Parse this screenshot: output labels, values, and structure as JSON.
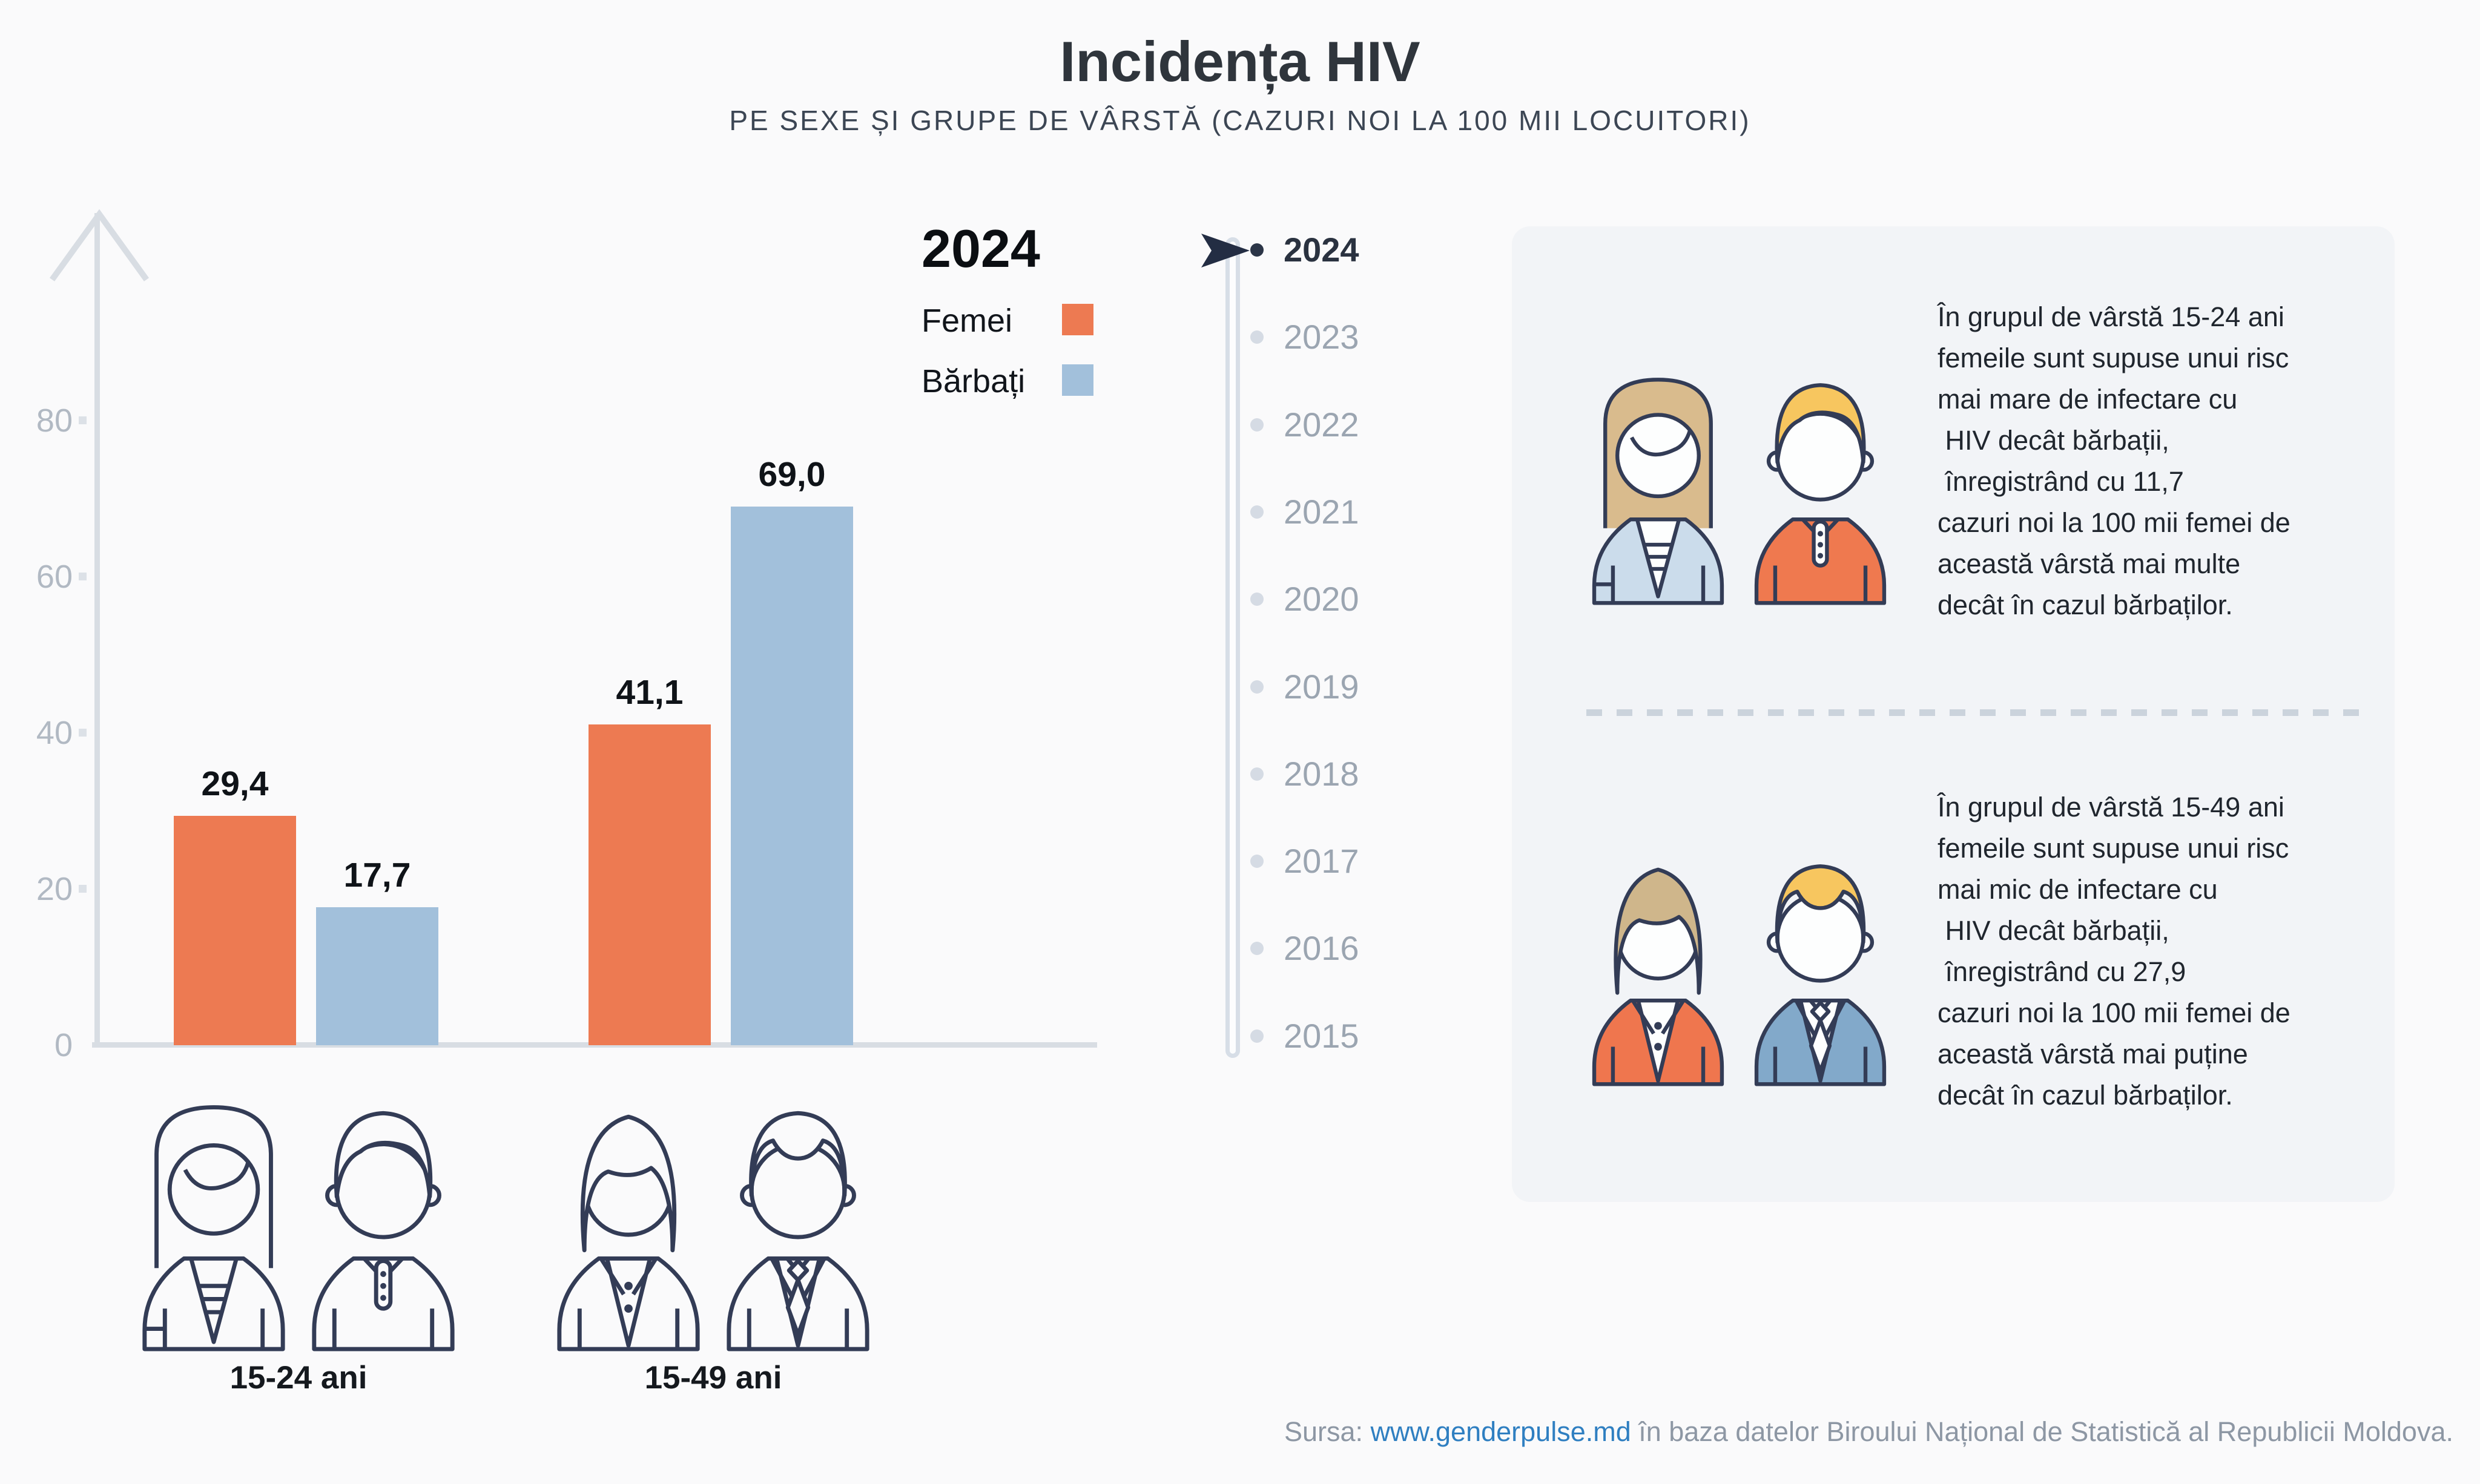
{
  "header": {
    "title": "Incidența HIV",
    "subtitle": "PE SEXE ȘI GRUPE DE VÂRSTĂ (CAZURI NOI LA 100 MII LOCUITORI)"
  },
  "legend": {
    "year": "2024",
    "entries": [
      {
        "label": "Femei",
        "color": "#ED7A52"
      },
      {
        "label": "Bărbați",
        "color": "#A2C0DB"
      }
    ]
  },
  "chart_data": {
    "type": "bar",
    "title": "Incidența HIV",
    "subtitle": "Pe sexe și grupe de vârstă (cazuri noi la 100 mii locuitori)",
    "year": "2024",
    "categories": [
      "15-24 ani",
      "15-49 ani"
    ],
    "series": [
      {
        "name": "Femei",
        "color": "#ED7A52",
        "values": [
          29.4,
          41.1
        ],
        "labels": [
          "29,4",
          "41,1"
        ]
      },
      {
        "name": "Bărbați",
        "color": "#A2C0DB",
        "values": [
          17.7,
          69.0
        ],
        "labels": [
          "17,7",
          "69,0"
        ]
      }
    ],
    "yticks": [
      0,
      20,
      40,
      60,
      80
    ],
    "ylim": [
      0,
      80
    ],
    "grid": false,
    "legend_position": "top-right",
    "icons": [
      "young-woman-icon",
      "young-man-icon",
      "woman-icon",
      "man-icon"
    ]
  },
  "timeline": {
    "active": "2024",
    "years": [
      "2024",
      "2023",
      "2022",
      "2021",
      "2020",
      "2019",
      "2018",
      "2017",
      "2016",
      "2015"
    ]
  },
  "panel": {
    "blocks": [
      {
        "icons": [
          "woman-icon",
          "man-icon"
        ],
        "lines": [
          "În grupul de vârstă 15-24 ani",
          "femeile sunt supuse unui risc",
          "mai mare de infectare cu",
          " HIV decât bărbații,",
          " înregistrând cu 11,7",
          "cazuri noi la 100 mii femei de",
          "această vârstă mai multe",
          "decât în cazul bărbaților."
        ]
      },
      {
        "icons": [
          "woman-icon",
          "man-icon"
        ],
        "lines": [
          "În grupul de vârstă 15-49 ani",
          "femeile sunt supuse unui risc",
          "mai mic de infectare cu",
          " HIV decât bărbații,",
          " înregistrând cu 27,9",
          "cazuri noi la 100 mii femei de",
          "această vârstă mai puține",
          "decât în cazul bărbaților."
        ]
      }
    ]
  },
  "footer": {
    "prefix": "Sursa: ",
    "link": "www.genderpulse.md",
    "suffix": " în baza datelor Biroului Național de Statistică al Republicii Moldova."
  }
}
